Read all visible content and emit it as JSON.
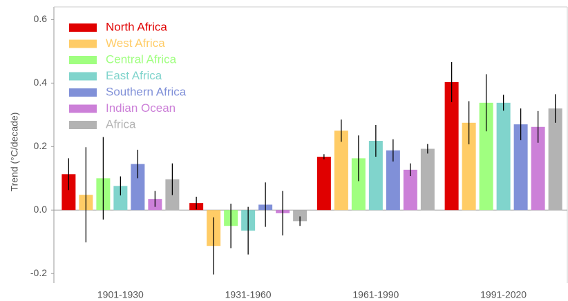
{
  "chart_data": {
    "type": "bar",
    "y_label": "Trend (°C/decade)",
    "categories": [
      "1901-1930",
      "1931-1960",
      "1961-1990",
      "1991-2020"
    ],
    "series": [
      {
        "name": "North Africa",
        "color": "#e00000",
        "values": [
          0.113,
          0.022,
          0.168,
          0.403
        ],
        "errors": [
          0.05,
          0.02,
          0.008,
          0.063
        ]
      },
      {
        "name": "West Africa",
        "color": "#ffcc66",
        "values": [
          0.048,
          -0.113,
          0.25,
          0.275
        ],
        "errors": [
          0.15,
          0.09,
          0.035,
          0.068
        ]
      },
      {
        "name": "Central Africa",
        "color": "#a0ff80",
        "values": [
          0.1,
          -0.05,
          0.163,
          0.338
        ],
        "errors": [
          0.13,
          0.07,
          0.072,
          0.09
        ]
      },
      {
        "name": "East Africa",
        "color": "#80d4cc",
        "values": [
          0.076,
          -0.065,
          0.218,
          0.338
        ],
        "errors": [
          0.03,
          0.075,
          0.05,
          0.025
        ]
      },
      {
        "name": "Southern Africa",
        "color": "#8090d8",
        "values": [
          0.145,
          0.017,
          0.188,
          0.27
        ],
        "errors": [
          0.045,
          0.07,
          0.035,
          0.05
        ]
      },
      {
        "name": "Indian Ocean",
        "color": "#cc80d8",
        "values": [
          0.035,
          -0.01,
          0.127,
          0.262
        ],
        "errors": [
          0.025,
          0.07,
          0.02,
          0.05
        ]
      },
      {
        "name": "Africa",
        "color": "#b3b3b3",
        "values": [
          0.097,
          -0.035,
          0.193,
          0.32
        ],
        "errors": [
          0.05,
          0.015,
          0.015,
          0.045
        ]
      }
    ],
    "ylim": [
      -0.23,
      0.64
    ],
    "yticks": [
      -0.2,
      {
        "value": 0,
        "label": "0.0"
      },
      0.2,
      0.4,
      0.6
    ],
    "legend": "upper left"
  }
}
